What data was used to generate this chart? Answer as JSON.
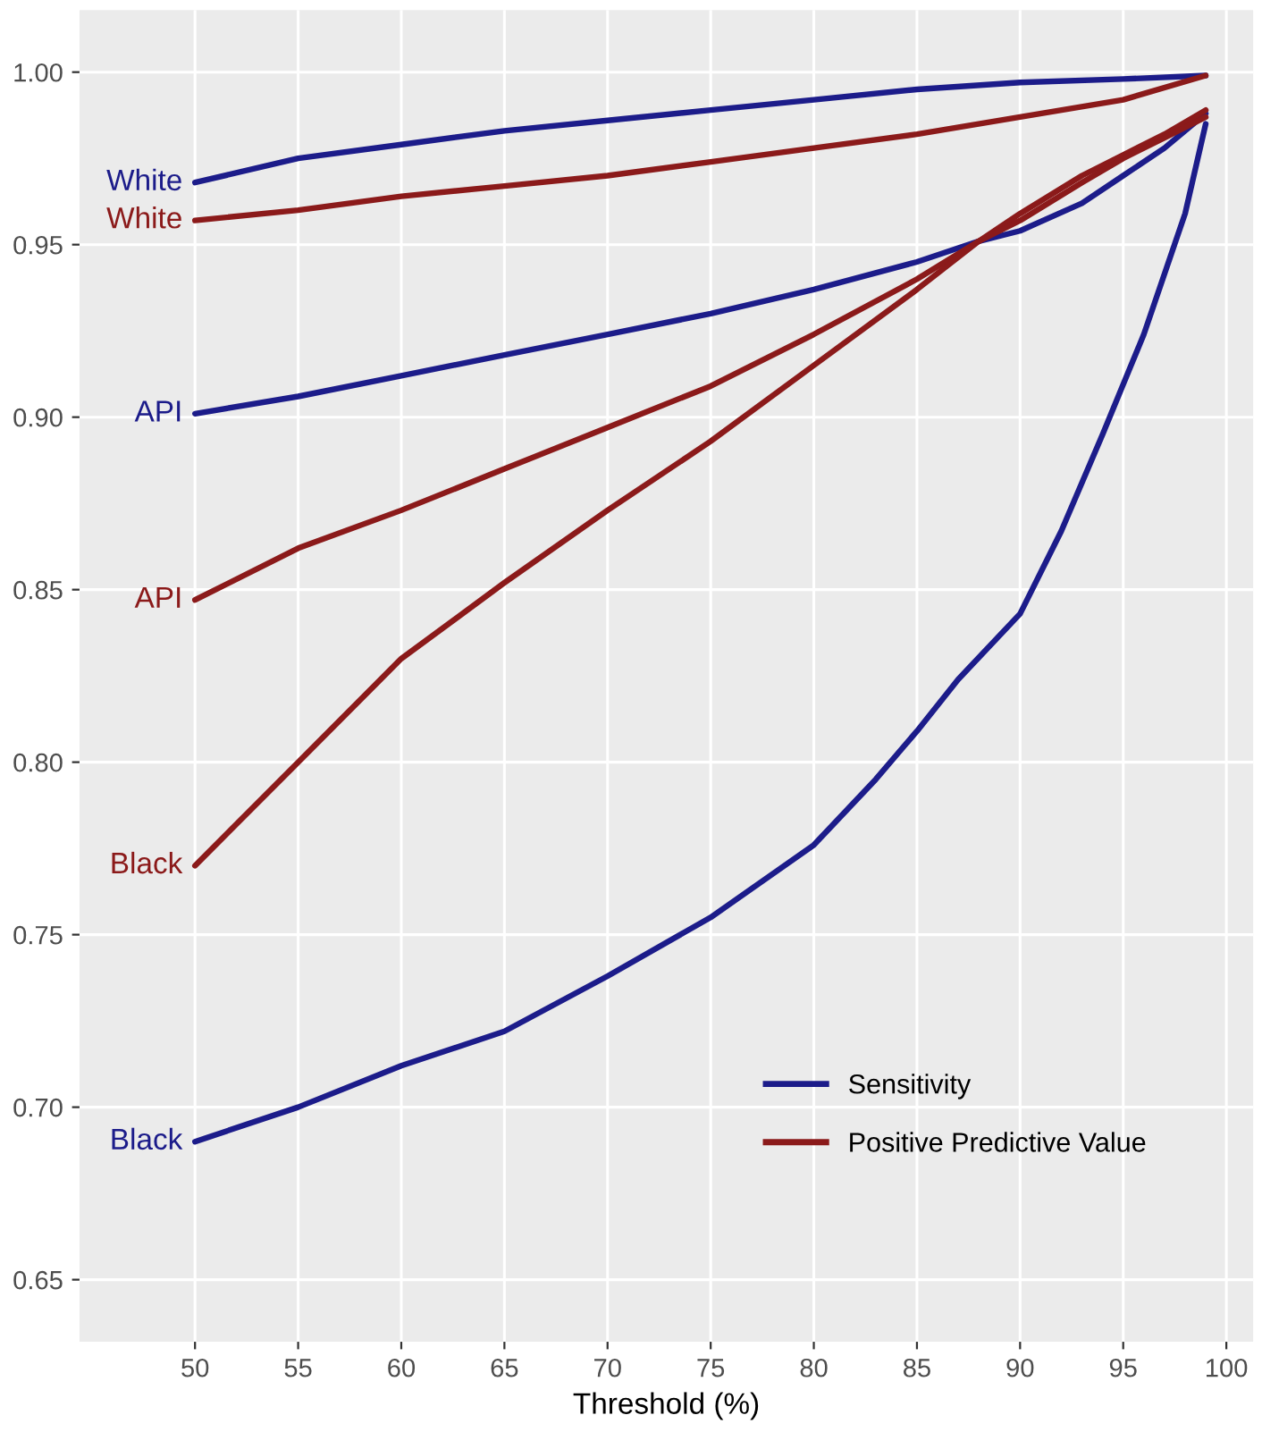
{
  "chart_data": {
    "type": "line",
    "xlabel": "Threshold (%)",
    "xlim": [
      44.4,
      101.3
    ],
    "ylim": [
      0.632,
      1.018
    ],
    "xticks": [
      50,
      55,
      60,
      65,
      70,
      75,
      80,
      85,
      90,
      95,
      100
    ],
    "yticks": [
      {
        "value": 0.65,
        "label": "0.65"
      },
      {
        "value": 0.7,
        "label": "0.70"
      },
      {
        "value": 0.75,
        "label": "0.75"
      },
      {
        "value": 0.8,
        "label": "0.80"
      },
      {
        "value": 0.85,
        "label": "0.85"
      },
      {
        "value": 0.9,
        "label": "0.90"
      },
      {
        "value": 0.95,
        "label": "0.95"
      },
      {
        "value": 1.0,
        "label": "1.00"
      }
    ],
    "grid": true,
    "legend": "bottom right",
    "line_style": "solid",
    "marker": "none",
    "series": [
      {
        "name": "Sensitivity",
        "color": "#1c1c8a",
        "x": [
          50,
          55,
          60,
          65,
          70,
          75,
          80,
          85,
          90,
          95,
          99
        ],
        "values": [
          0.968,
          0.975,
          0.979,
          0.983,
          0.986,
          0.989,
          0.992,
          0.995,
          0.997,
          0.998,
          0.999
        ]
      },
      {
        "name": "Positive Predictive Value",
        "color": "#8b1a1a",
        "x": [
          50,
          55,
          60,
          65,
          70,
          75,
          80,
          85,
          90,
          95,
          99
        ],
        "values": [
          0.957,
          0.96,
          0.964,
          0.967,
          0.97,
          0.974,
          0.978,
          0.982,
          0.987,
          0.992,
          0.999
        ]
      },
      {
        "color": "#1c1c8a",
        "x": [
          50,
          55,
          60,
          65,
          70,
          75,
          80,
          85,
          88,
          90,
          93,
          95,
          97,
          99
        ],
        "values": [
          0.901,
          0.906,
          0.912,
          0.918,
          0.924,
          0.93,
          0.937,
          0.945,
          0.951,
          0.954,
          0.962,
          0.97,
          0.978,
          0.988
        ]
      },
      {
        "color": "#8b1a1a",
        "x": [
          50,
          55,
          60,
          65,
          70,
          75,
          80,
          85,
          88,
          90,
          93,
          95,
          97,
          99
        ],
        "values": [
          0.847,
          0.862,
          0.873,
          0.885,
          0.897,
          0.909,
          0.924,
          0.94,
          0.951,
          0.959,
          0.97,
          0.976,
          0.982,
          0.989
        ]
      },
      {
        "color": "#8b1a1a",
        "x": [
          50,
          55,
          60,
          65,
          70,
          75,
          80,
          85,
          88,
          90,
          93,
          95,
          97,
          99
        ],
        "values": [
          0.77,
          0.8,
          0.83,
          0.852,
          0.873,
          0.893,
          0.915,
          0.937,
          0.951,
          0.957,
          0.968,
          0.975,
          0.981,
          0.987
        ]
      },
      {
        "color": "#1c1c8a",
        "x": [
          50,
          55,
          60,
          65,
          70,
          75,
          80,
          83,
          85,
          87,
          90,
          92,
          94,
          96,
          98,
          99
        ],
        "values": [
          0.69,
          0.7,
          0.712,
          0.722,
          0.738,
          0.755,
          0.776,
          0.795,
          0.809,
          0.824,
          0.843,
          0.867,
          0.895,
          0.924,
          0.959,
          0.985
        ]
      }
    ],
    "annotations": [
      "White",
      "White",
      "API",
      "API",
      "Black",
      "Black"
    ]
  }
}
